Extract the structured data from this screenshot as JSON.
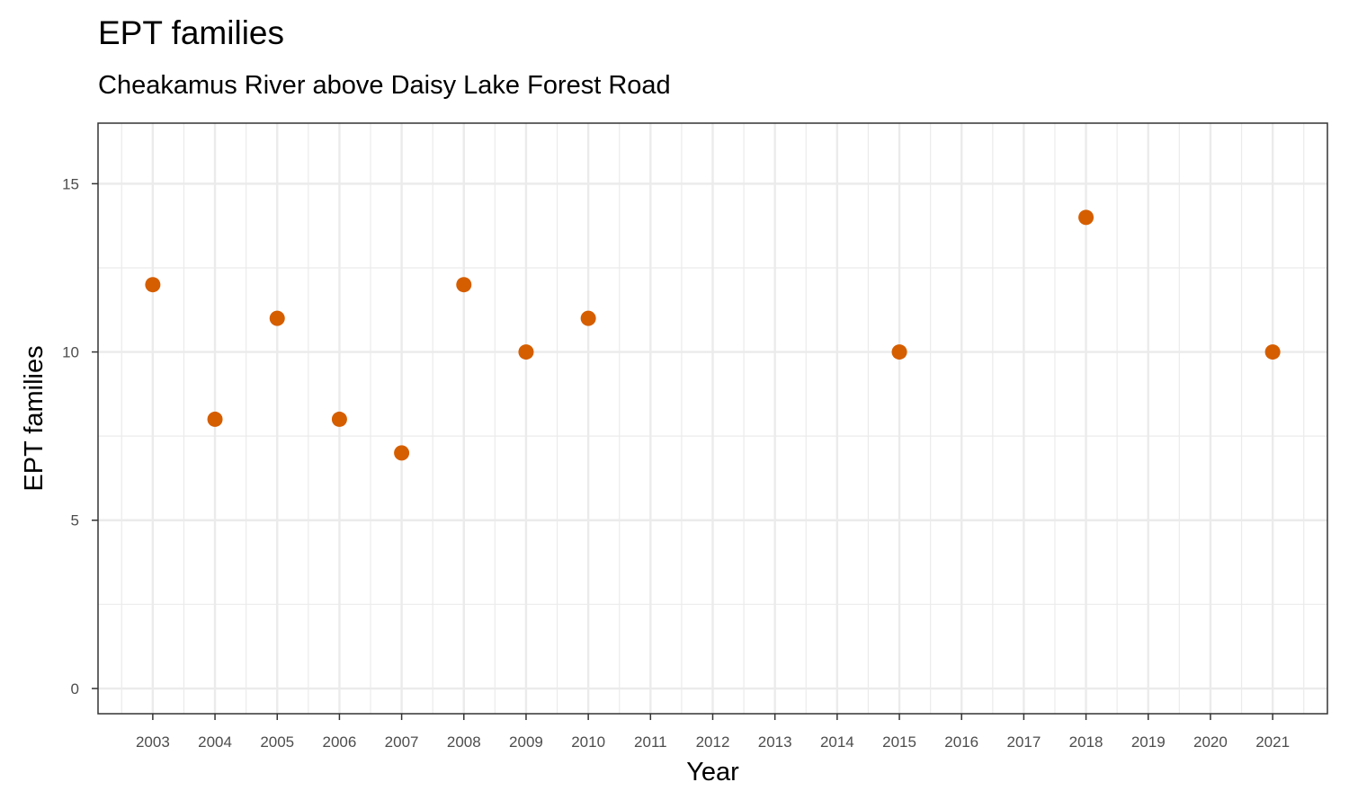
{
  "chart_data": {
    "type": "scatter",
    "title": "EPT families",
    "subtitle": "Cheakamus River above Daisy Lake Forest Road",
    "xlabel": "Year",
    "ylabel": "EPT families",
    "x_ticks": [
      "2003",
      "2004",
      "2005",
      "2006",
      "2007",
      "2008",
      "2009",
      "2010",
      "2011",
      "2012",
      "2013",
      "2014",
      "2015",
      "2016",
      "2017",
      "2018",
      "2019",
      "2020",
      "2021"
    ],
    "y_ticks": [
      "0",
      "5",
      "10",
      "15"
    ],
    "xlim": [
      2002.12,
      2021.88
    ],
    "ylim": [
      -0.75,
      16.8
    ],
    "grid": true,
    "point_color": "#D55E00",
    "points": [
      {
        "x": 2003,
        "y": 12
      },
      {
        "x": 2004,
        "y": 8
      },
      {
        "x": 2005,
        "y": 11
      },
      {
        "x": 2006,
        "y": 8
      },
      {
        "x": 2007,
        "y": 7
      },
      {
        "x": 2008,
        "y": 12
      },
      {
        "x": 2009,
        "y": 10
      },
      {
        "x": 2010,
        "y": 11
      },
      {
        "x": 2015,
        "y": 10
      },
      {
        "x": 2018,
        "y": 14
      },
      {
        "x": 2021,
        "y": 10
      }
    ]
  }
}
